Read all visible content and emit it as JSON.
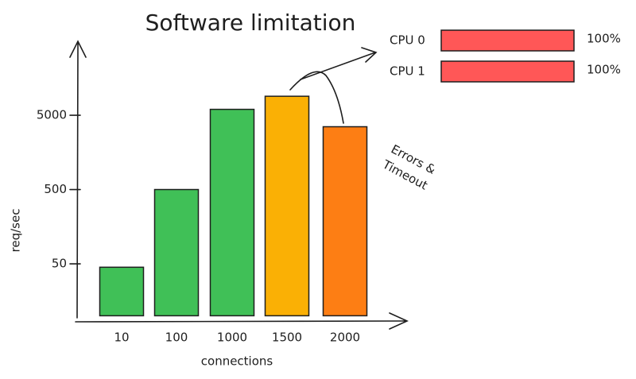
{
  "chart_data": [
    {
      "type": "bar",
      "title": "Software limitation",
      "x_label": "connections",
      "y_label": "req/sec",
      "categories": [
        "10",
        "100",
        "1000",
        "1500",
        "2000"
      ],
      "values": [
        45,
        500,
        6000,
        9000,
        3500
      ],
      "colors": [
        "#40c057",
        "#40c057",
        "#40c057",
        "#fab005",
        "#fd7e14"
      ],
      "log_scale": true,
      "ylim": [
        10,
        50000
      ],
      "yticks": [
        50,
        500,
        5000
      ],
      "annotations": [
        "Errors &",
        "Timeout"
      ]
    },
    {
      "type": "hbar",
      "categories": [
        "CPU 0",
        "CPU 1"
      ],
      "values": [
        100,
        100
      ],
      "value_labels": [
        "100%",
        "100%"
      ],
      "color": "#ff5757",
      "xlim": [
        0,
        100
      ]
    }
  ]
}
